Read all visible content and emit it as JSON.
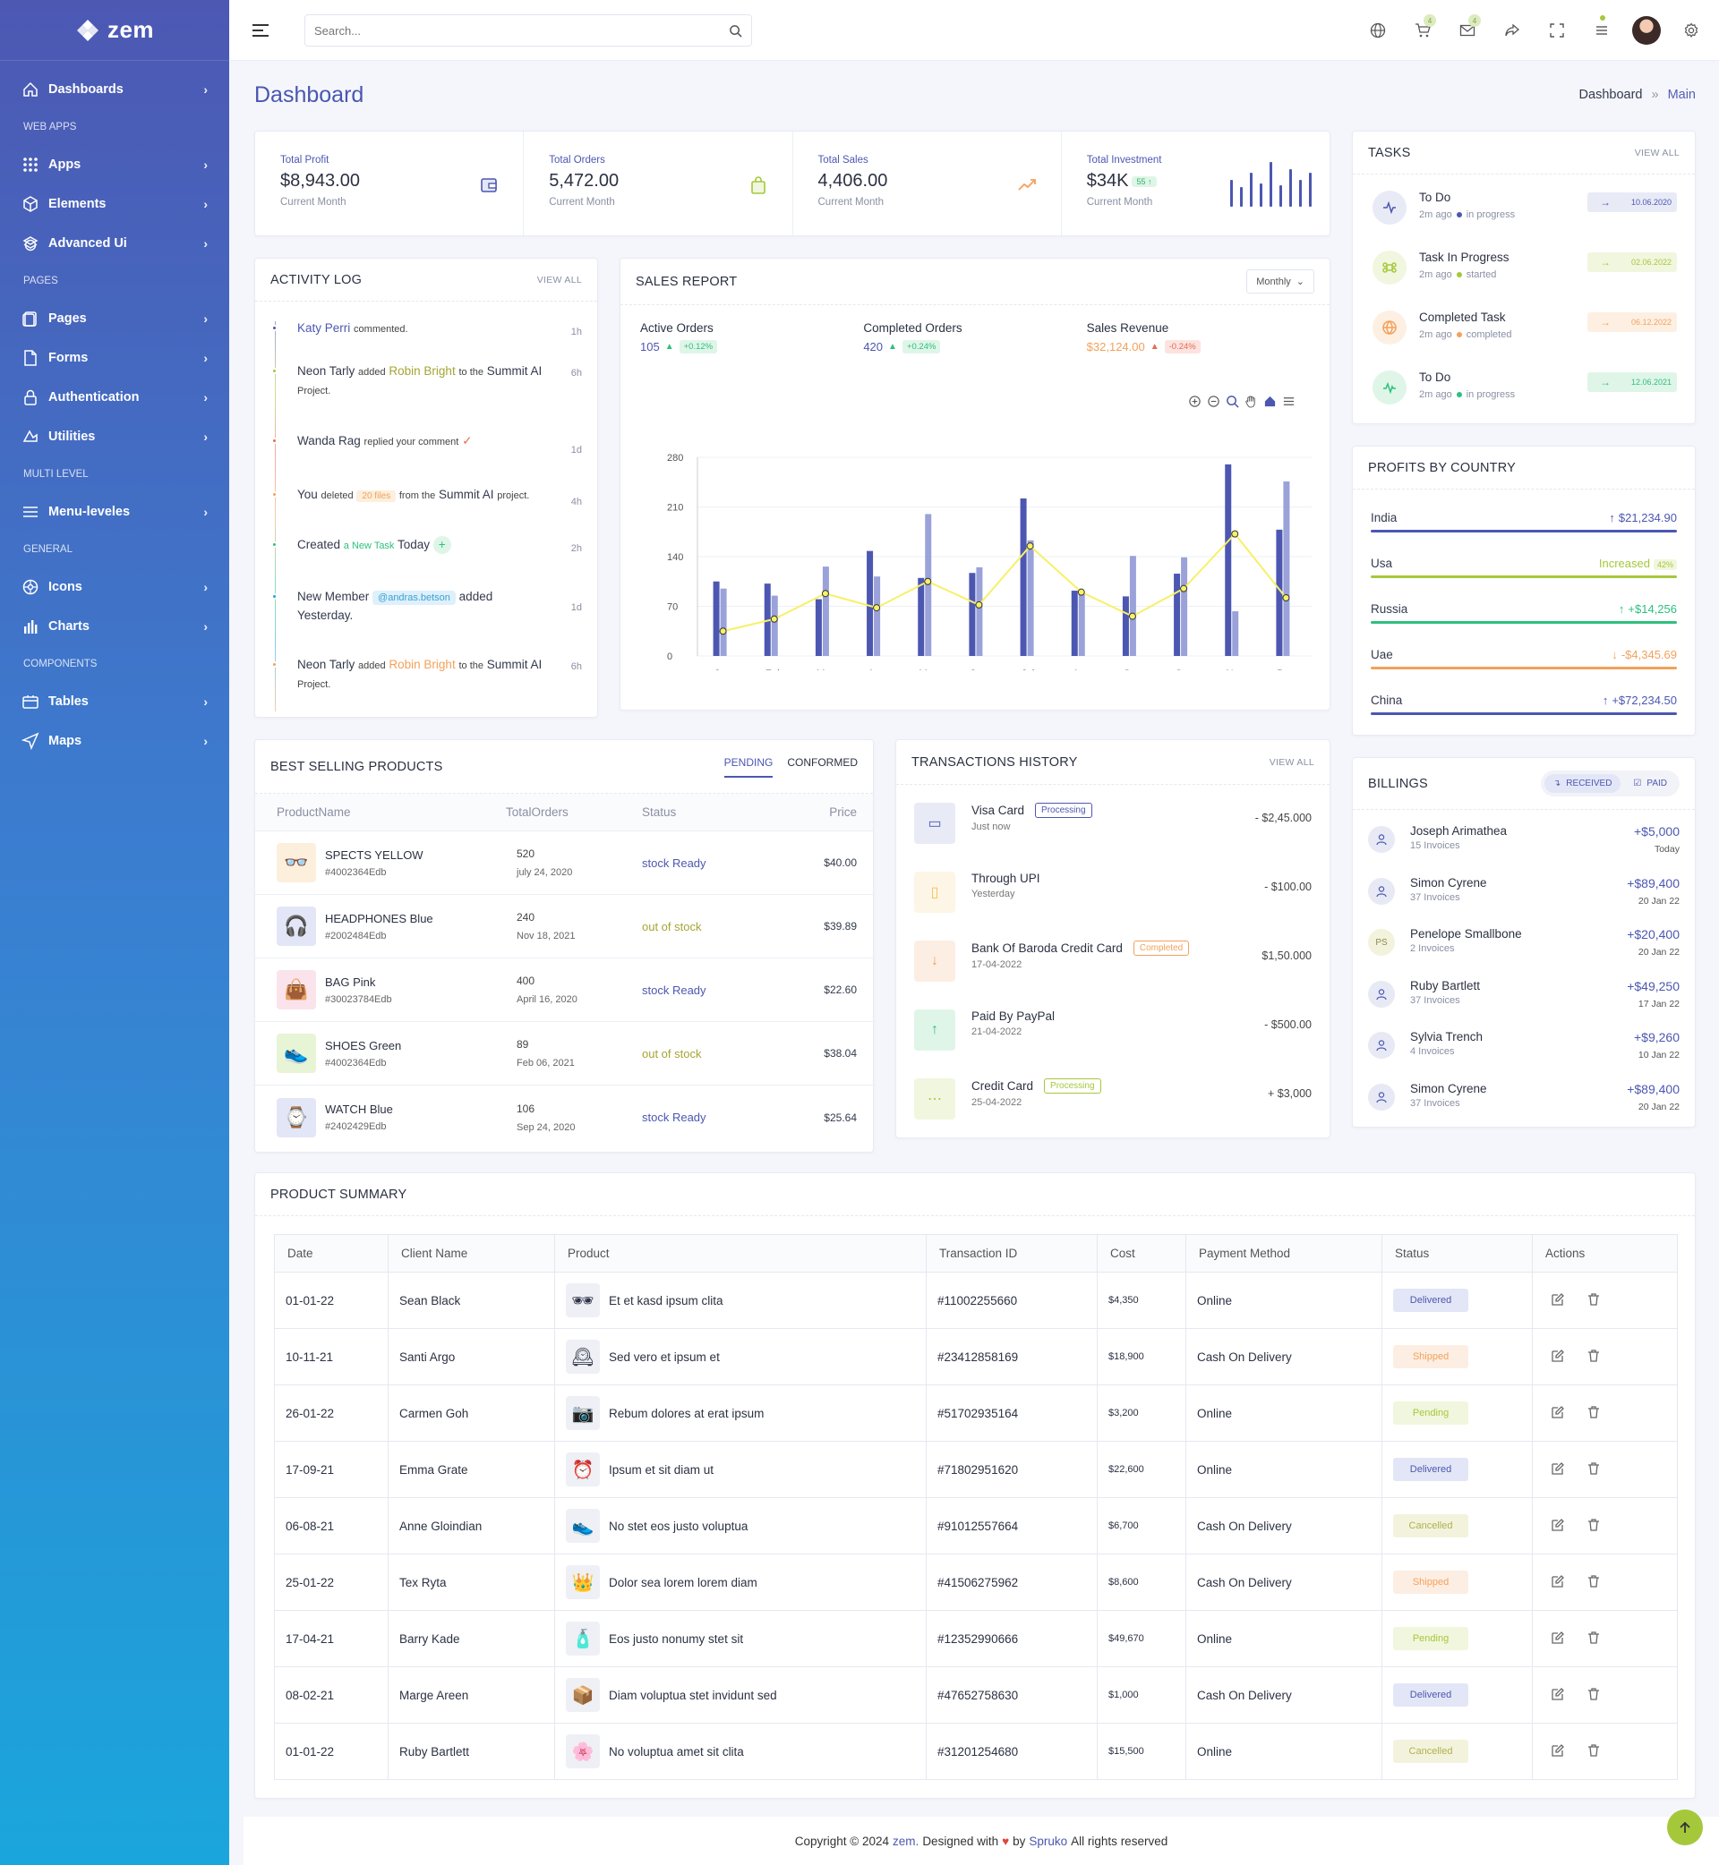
{
  "brand": {
    "name": "zem"
  },
  "sidebar": {
    "items": [
      {
        "type": "item",
        "label": "Dashboards",
        "icon": "home-icon"
      },
      {
        "type": "cat",
        "label": "WEB APPS"
      },
      {
        "type": "item",
        "label": "Apps",
        "icon": "grid-icon"
      },
      {
        "type": "item",
        "label": "Elements",
        "icon": "cube-icon"
      },
      {
        "type": "item",
        "label": "Advanced Ui",
        "icon": "layers-icon"
      },
      {
        "type": "cat",
        "label": "PAGES"
      },
      {
        "type": "item",
        "label": "Pages",
        "icon": "pages-icon"
      },
      {
        "type": "item",
        "label": "Forms",
        "icon": "file-icon"
      },
      {
        "type": "item",
        "label": "Authentication",
        "icon": "lock-icon"
      },
      {
        "type": "item",
        "label": "Utilities",
        "icon": "utilities-icon"
      },
      {
        "type": "cat",
        "label": "MULTI LEVEL"
      },
      {
        "type": "item",
        "label": "Menu-leveles",
        "icon": "menu-icon"
      },
      {
        "type": "cat",
        "label": "GENERAL"
      },
      {
        "type": "item",
        "label": "Icons",
        "icon": "icons-icon"
      },
      {
        "type": "item",
        "label": "Charts",
        "icon": "chart-icon"
      },
      {
        "type": "cat",
        "label": "COMPONENTS"
      },
      {
        "type": "item",
        "label": "Tables",
        "icon": "table-icon"
      },
      {
        "type": "item",
        "label": "Maps",
        "icon": "map-icon"
      }
    ]
  },
  "topbar": {
    "search_placeholder": "Search...",
    "cart_count": "4",
    "mail_count": "4"
  },
  "header": {
    "title": "Dashboard",
    "breadcrumb": [
      "Dashboard",
      "Main"
    ]
  },
  "stats": [
    {
      "label": "Total Profit",
      "value": "$8,943.00",
      "sub": "Current Month",
      "icon": "wallet-icon",
      "color": "#4c57b1"
    },
    {
      "label": "Total Orders",
      "value": "5,472.00",
      "sub": "Current Month",
      "icon": "bag-icon",
      "color": "#a5c83b"
    },
    {
      "label": "Total Sales",
      "value": "4,406.00",
      "sub": "Current Month",
      "icon": "trend-up-icon",
      "color": "#f3a15b"
    },
    {
      "label": "Total Investment",
      "value": "$34K",
      "badge": "55",
      "sub": "Current Month",
      "icon": "spark-bars-icon",
      "color": "#4c57b1"
    }
  ],
  "activity": {
    "title": "ACTIVITY LOG",
    "view_all": "VIEW ALL"
  },
  "sales_report": {
    "title": "SALES REPORT",
    "period": "Monthly",
    "metrics": [
      {
        "label": "Active Orders",
        "value": "105",
        "change": "+0.12%",
        "color": "#4c57b1",
        "up": true
      },
      {
        "label": "Completed Orders",
        "value": "420",
        "change": "+0.24%",
        "color": "#4c57b1",
        "up": true
      },
      {
        "label": "Sales Revenue",
        "value": "$32,124.00",
        "change": "-0.24%",
        "color": "#f3a15b",
        "up": false
      }
    ]
  },
  "chart_data": {
    "type": "bar",
    "categories": [
      "Jan",
      "Feb",
      "Mar",
      "Apr",
      "May",
      "Jun",
      "Jul",
      "Aug",
      "Sep",
      "Oct",
      "Nov",
      "Dec"
    ],
    "series": [
      {
        "name": "Active Orders",
        "type": "bar",
        "color": "#4c57b1",
        "values": [
          105,
          102,
          80,
          148,
          110,
          117,
          222,
          92,
          84,
          116,
          270,
          178
        ]
      },
      {
        "name": "Completed Orders",
        "type": "bar",
        "color": "#9aa2d9",
        "values": [
          95,
          85,
          126,
          112,
          200,
          125,
          163,
          87,
          141,
          139,
          63,
          246
        ]
      },
      {
        "name": "Sales Revenue",
        "type": "line",
        "color": "#f7f068",
        "values": [
          35,
          52,
          88,
          68,
          105,
          72,
          155,
          90,
          56,
          95,
          172,
          82
        ]
      }
    ],
    "ylim": [
      0,
      280
    ],
    "yticks": [
      0,
      70,
      140,
      210,
      280
    ],
    "legend": "bottom"
  },
  "tasks": {
    "title": "TASKS",
    "view_all": "VIEW ALL",
    "items": [
      {
        "title": "To Do",
        "time": "2m ago",
        "status": "in progress",
        "date": "10.06.2020",
        "color": "#4c57b1",
        "bg": "#e8eaf6",
        "icon": "pulse-icon"
      },
      {
        "title": "Task In Progress",
        "time": "2m ago",
        "status": "started",
        "date": "02.06.2022",
        "color": "#a5c83b",
        "bg": "#f1f6de",
        "icon": "command-icon"
      },
      {
        "title": "Completed Task",
        "time": "2m ago",
        "status": "completed",
        "date": "06.12.2022",
        "color": "#f3a15b",
        "bg": "#fdf0e3",
        "icon": "globe-icon"
      },
      {
        "title": "To Do",
        "time": "2m ago",
        "status": "in progress",
        "date": "12.06.2021",
        "color": "#2dc07e",
        "bg": "#dff5e8",
        "icon": "activity-icon"
      }
    ]
  },
  "profits": {
    "title": "PROFITS BY COUNTRY",
    "items": [
      {
        "country": "India",
        "value": "$21,234.90",
        "color": "#4c57b1",
        "arrow": "up"
      },
      {
        "country": "Usa",
        "value": "Increased",
        "badge": "42%",
        "color": "#a5c83b",
        "arrow": ""
      },
      {
        "country": "Russia",
        "value": "+$14,256",
        "color": "#2dc07e",
        "arrow": "up"
      },
      {
        "country": "Uae",
        "value": "-$4,345.69",
        "color": "#f3a15b",
        "arrow": "down"
      },
      {
        "country": "China",
        "value": "+$72,234.50",
        "color": "#4c57b1",
        "arrow": "up"
      }
    ]
  },
  "billings": {
    "title": "BILLINGS",
    "tab_received": "RECEIVED",
    "tab_paid": "PAID",
    "items": [
      {
        "name": "Joseph Arimathea",
        "sub": "15 Invoices",
        "amount": "+$5,000",
        "date": "Today",
        "initials": ""
      },
      {
        "name": "Simon Cyrene",
        "sub": "37 Invoices",
        "amount": "+$89,400",
        "date": "20 Jan 22",
        "initials": ""
      },
      {
        "name": "Penelope Smallbone",
        "sub": "2 Invoices",
        "amount": "+$20,400",
        "date": "20 Jan 22",
        "initials": "PS"
      },
      {
        "name": "Ruby Bartlett",
        "sub": "37 Invoices",
        "amount": "+$49,250",
        "date": "17 Jan 22",
        "initials": ""
      },
      {
        "name": "Sylvia Trench",
        "sub": "4 Invoices",
        "amount": "+$9,260",
        "date": "10 Jan 22",
        "initials": ""
      },
      {
        "name": "Simon Cyrene",
        "sub": "37 Invoices",
        "amount": "+$89,400",
        "date": "20 Jan 22",
        "initials": ""
      }
    ]
  },
  "best_selling": {
    "title": "BEST SELLING PRODUCTS",
    "tabs": [
      "PENDING",
      "CONFORMED"
    ],
    "headers": [
      "ProductName",
      "TotalOrders",
      "Status",
      "Price"
    ],
    "rows": [
      {
        "name": "SPECTS YELLOW",
        "id": "#4002364Edb",
        "orders": "520",
        "date": "july 24, 2020",
        "status": "stock Ready",
        "price": "$40.00",
        "thumb": "#fcefdc",
        "glyph": "👓",
        "status_color": "#4c57b1"
      },
      {
        "name": "HEADPHONES Blue",
        "id": "#2002484Edb",
        "orders": "240",
        "date": "Nov 18, 2021",
        "status": "out of stock",
        "price": "$39.89",
        "thumb": "#e3e6f6",
        "glyph": "🎧",
        "status_color": "#a5a534"
      },
      {
        "name": "BAG Pink",
        "id": "#30023784Edb",
        "orders": "400",
        "date": "April 16, 2020",
        "status": "stock Ready",
        "price": "$22.60",
        "thumb": "#fbe3ec",
        "glyph": "👜",
        "status_color": "#4c57b1"
      },
      {
        "name": "SHOES Green",
        "id": "#4002364Edb",
        "orders": "89",
        "date": "Feb 06, 2021",
        "status": "out of stock",
        "price": "$38.04",
        "thumb": "#e8f4d6",
        "glyph": "👟",
        "status_color": "#a5a534"
      },
      {
        "name": "WATCH Blue",
        "id": "#2402429Edb",
        "orders": "106",
        "date": "Sep 24, 2020",
        "status": "stock Ready",
        "price": "$25.64",
        "thumb": "#e3e6f6",
        "glyph": "⌚",
        "status_color": "#4c57b1"
      }
    ]
  },
  "transactions": {
    "title": "TRANSACTIONS HISTORY",
    "view_all": "VIEW ALL",
    "items": [
      {
        "name": "Visa Card",
        "sub": "Just now",
        "badge": "Processing",
        "badge_color": "#4c57b1",
        "amount": "- $2,45.000",
        "bg": "#e8eaf6",
        "color": "#4c57b1",
        "glyph": "▭"
      },
      {
        "name": "Through UPI",
        "sub": "Yesterday",
        "badge": "",
        "badge_color": "",
        "amount": "- $100.00",
        "bg": "#fdf5e6",
        "color": "#f3c15b",
        "glyph": "▯"
      },
      {
        "name": "Bank Of Baroda Credit Card",
        "sub": "17-04-2022",
        "badge": "Completed",
        "badge_color": "#f3a15b",
        "amount": "$1,50.000",
        "bg": "#fdeee3",
        "color": "#f3a15b",
        "glyph": "↓"
      },
      {
        "name": "Paid By PayPal",
        "sub": "21-04-2022",
        "badge": "",
        "badge_color": "",
        "amount": "- $500.00",
        "bg": "#dff5e8",
        "color": "#2dc07e",
        "glyph": "↑"
      },
      {
        "name": "Credit Card",
        "sub": "25-04-2022",
        "badge": "Processing",
        "badge_color": "#a5c83b",
        "amount": "+ $3,000",
        "bg": "#f1f6de",
        "color": "#a5c83b",
        "glyph": "⋯"
      }
    ]
  },
  "summary": {
    "title": "PRODUCT SUMMARY",
    "headers": [
      "Date",
      "Client Name",
      "Product",
      "Transaction ID",
      "Cost",
      "Payment Method",
      "Status",
      "Actions"
    ],
    "rows": [
      {
        "date": "01-01-22",
        "client": "Sean Black",
        "product": "Et et kasd ipsum clita",
        "txn": "#11002255660",
        "cost": "$4,350",
        "method": "Online",
        "status": "Delivered",
        "glyph": "🕶"
      },
      {
        "date": "10-11-21",
        "client": "Santi Argo",
        "product": "Sed vero et ipsum et",
        "txn": "#23412858169",
        "cost": "$18,900",
        "method": "Cash On Delivery",
        "status": "Shipped",
        "glyph": "🕰"
      },
      {
        "date": "26-01-22",
        "client": "Carmen Goh",
        "product": "Rebum dolores at erat ipsum",
        "txn": "#51702935164",
        "cost": "$3,200",
        "method": "Online",
        "status": "Pending",
        "glyph": "📷"
      },
      {
        "date": "17-09-21",
        "client": "Emma Grate",
        "product": "Ipsum et sit diam ut",
        "txn": "#71802951620",
        "cost": "$22,600",
        "method": "Online",
        "status": "Delivered",
        "glyph": "⏰"
      },
      {
        "date": "06-08-21",
        "client": "Anne Gloindian",
        "product": "No stet eos justo voluptua",
        "txn": "#91012557664",
        "cost": "$6,700",
        "method": "Cash On Delivery",
        "status": "Cancelled",
        "glyph": "👟"
      },
      {
        "date": "25-01-22",
        "client": "Tex Ryta",
        "product": "Dolor sea lorem lorem diam",
        "txn": "#41506275962",
        "cost": "$8,600",
        "method": "Cash On Delivery",
        "status": "Shipped",
        "glyph": "👑"
      },
      {
        "date": "17-04-21",
        "client": "Barry Kade",
        "product": "Eos justo nonumy stet sit",
        "txn": "#12352990666",
        "cost": "$49,670",
        "method": "Online",
        "status": "Pending",
        "glyph": "🧴"
      },
      {
        "date": "08-02-21",
        "client": "Marge Areen",
        "product": "Diam voluptua stet invidunt sed",
        "txn": "#47652758630",
        "cost": "$1,000",
        "method": "Cash On Delivery",
        "status": "Delivered",
        "glyph": "📦"
      },
      {
        "date": "01-01-22",
        "client": "Ruby Bartlett",
        "product": "No voluptua amet sit clita",
        "txn": "#31201254680",
        "cost": "$15,500",
        "method": "Online",
        "status": "Cancelled",
        "glyph": "🌸"
      }
    ]
  },
  "status_colors": {
    "Delivered": {
      "bg": "#e3e6f6",
      "fg": "#4c57b1"
    },
    "Shipped": {
      "bg": "#fdeee3",
      "fg": "#f3a15b"
    },
    "Pending": {
      "bg": "#f1f6de",
      "fg": "#a5c83b"
    },
    "Cancelled": {
      "bg": "#f3f3dd",
      "fg": "#b0b04e"
    }
  },
  "footer": {
    "prefix": "Copyright © 2024",
    "brand": "zem.",
    "designed": "Designed with",
    "by": "by",
    "author": "Spruko",
    "suffix": "All rights reserved"
  }
}
